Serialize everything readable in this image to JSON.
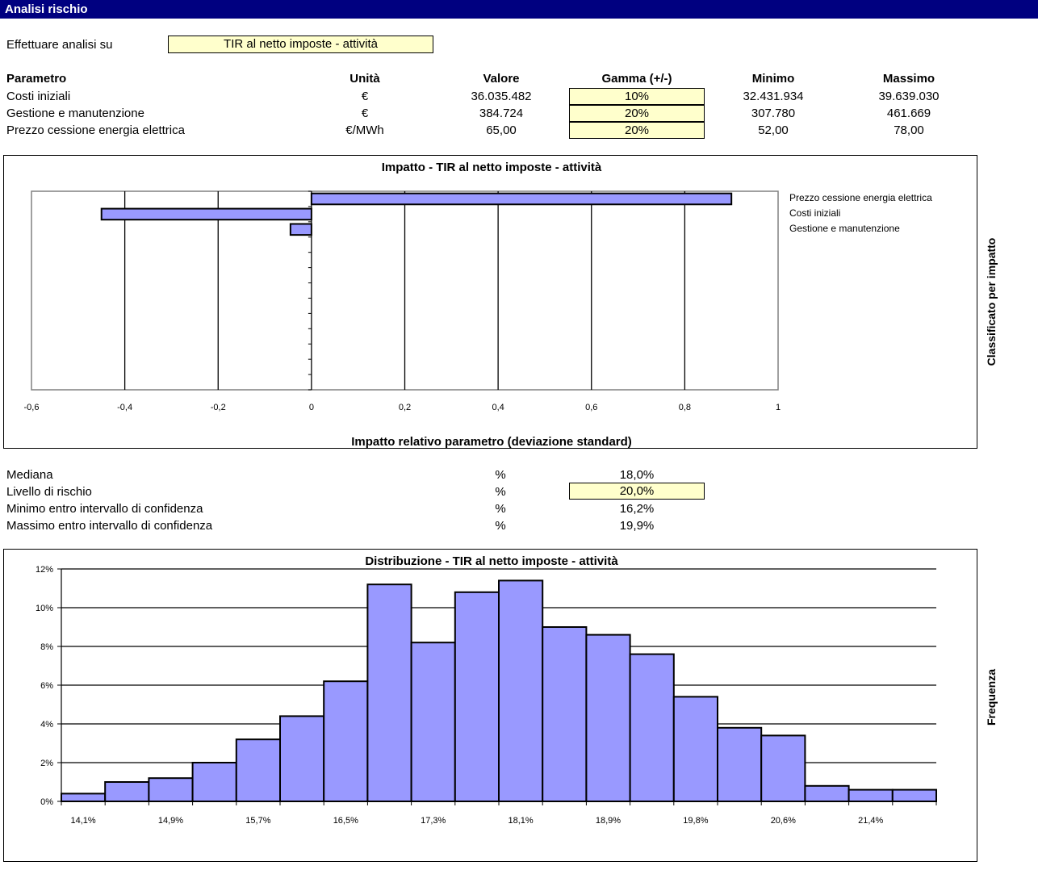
{
  "header": {
    "title": "Analisi rischio"
  },
  "analysis": {
    "label": "Effettuare analisi su",
    "value": "TIR al netto imposte - attività"
  },
  "params": {
    "headers": {
      "param": "Parametro",
      "unit": "Unità",
      "value": "Valore",
      "range": "Gamma (+/-)",
      "min": "Minimo",
      "max": "Massimo"
    },
    "rows": [
      {
        "name": "Costi iniziali",
        "unit": "€",
        "value": "36.035.482",
        "range": "10%",
        "min": "32.431.934",
        "max": "39.639.030"
      },
      {
        "name": "Gestione e manutenzione",
        "unit": "€",
        "value": "384.724",
        "range": "20%",
        "min": "307.780",
        "max": "461.669"
      },
      {
        "name": "Prezzo cessione energia elettrica",
        "unit": "€/MWh",
        "value": "65,00",
        "range": "20%",
        "min": "52,00",
        "max": "78,00"
      }
    ]
  },
  "impact_chart": {
    "title": "Impatto - TIR al netto imposte - attività",
    "xlabel": "Impatto relativo parametro (deviazione standard)",
    "side_label": "Classificato per impatto",
    "ticks": [
      "-0,6",
      "-0,4",
      "-0,2",
      "0",
      "0,2",
      "0,4",
      "0,6",
      "0,8",
      "1"
    ],
    "legend": [
      "Prezzo cessione energia elettrica",
      "Costi iniziali",
      "Gestione e manutenzione"
    ]
  },
  "stats": {
    "rows": [
      {
        "label": "Mediana",
        "unit": "%",
        "value": "18,0%"
      },
      {
        "label": "Livello di rischio",
        "unit": "%",
        "value": "20,0%"
      },
      {
        "label": "Minimo entro intervallo di confidenza",
        "unit": "%",
        "value": "16,2%"
      },
      {
        "label": "Massimo entro intervallo di confidenza",
        "unit": "%",
        "value": "19,9%"
      }
    ]
  },
  "dist_chart": {
    "title": "Distribuzione - TIR al netto imposte - attività",
    "side_label": "Frequenza",
    "xticks": [
      "14,1%",
      "14,9%",
      "15,7%",
      "16,5%",
      "17,3%",
      "18,1%",
      "18,9%",
      "19,8%",
      "20,6%",
      "21,4%"
    ],
    "yticks": [
      "0%",
      "2%",
      "4%",
      "6%",
      "8%",
      "10%",
      "12%"
    ]
  },
  "colors": {
    "bar": "#9999ff",
    "titlebar": "#000080",
    "input": "#ffffcc"
  },
  "chart_data": [
    {
      "type": "bar",
      "orientation": "horizontal",
      "title": "Impatto - TIR al netto imposte - attività",
      "xlabel": "Impatto relativo parametro (deviazione standard)",
      "ylabel": "Classificato per impatto",
      "xlim": [
        -0.6,
        1.0
      ],
      "grid": true,
      "legend_position": "right",
      "categories": [
        "Prezzo cessione energia elettrica",
        "Costi iniziali",
        "Gestione e manutenzione"
      ],
      "values": [
        0.9,
        -0.45,
        -0.045
      ]
    },
    {
      "type": "bar",
      "title": "Distribuzione - TIR al netto imposte - attività",
      "ylabel": "Frequenza",
      "ylim": [
        0,
        12
      ],
      "grid": true,
      "x_tick_labels": [
        "14,1%",
        "14,9%",
        "15,7%",
        "16,5%",
        "17,3%",
        "18,1%",
        "18,9%",
        "19,8%",
        "20,6%",
        "21,4%"
      ],
      "values": [
        0.4,
        1.0,
        1.2,
        2.0,
        3.2,
        4.4,
        6.2,
        11.2,
        8.2,
        10.8,
        11.4,
        9.0,
        8.6,
        7.6,
        5.4,
        3.8,
        3.4,
        0.8,
        0.6,
        0.6
      ]
    }
  ]
}
